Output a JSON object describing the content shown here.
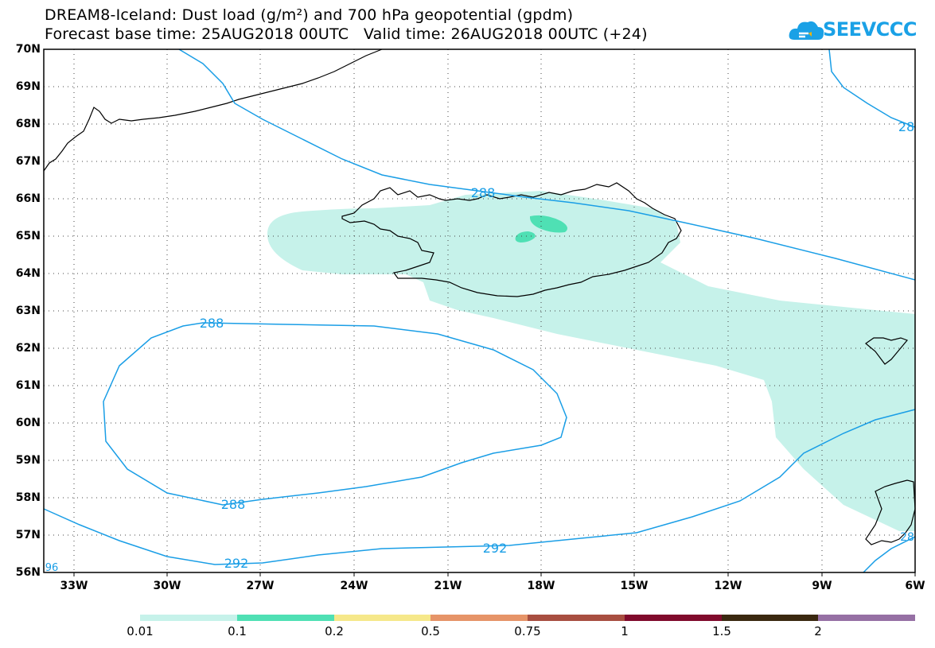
{
  "header": {
    "title_line1": "DREAM8-Iceland: Dust load (g/m²) and 700 hPa geopotential (gpdm)",
    "title_line2": "Forecast base time: 25AUG2018 00UTC   Valid time: 26AUG2018 00UTC (+24)"
  },
  "logo": {
    "text": "SEEVCCC",
    "icon": "cloud-icon",
    "color": "#1aa1e6"
  },
  "axes": {
    "lat_labels": [
      "70N",
      "69N",
      "68N",
      "67N",
      "66N",
      "65N",
      "64N",
      "63N",
      "62N",
      "61N",
      "60N",
      "59N",
      "58N",
      "57N",
      "56N"
    ],
    "lon_labels": [
      "33W",
      "30W",
      "27W",
      "24W",
      "21W",
      "18W",
      "15W",
      "12W",
      "9W",
      "6W"
    ]
  },
  "contours": {
    "labels": [
      "288",
      "288",
      "288",
      "292",
      "28",
      "96",
      "28"
    ],
    "color": "#1a9ee6"
  },
  "colorbar": {
    "colors": [
      "#c6f2ea",
      "#4fe0b4",
      "#f6e88a",
      "#e69468",
      "#a84e40",
      "#800a2c",
      "#3a2810",
      "#9670a4"
    ],
    "labels": [
      "0.01",
      "0.1",
      "0.2",
      "0.5",
      "0.75",
      "1",
      "1.5",
      "2"
    ]
  },
  "dust_fill": "#c6f2ea",
  "dust_high_fill": "#4fe0b4"
}
